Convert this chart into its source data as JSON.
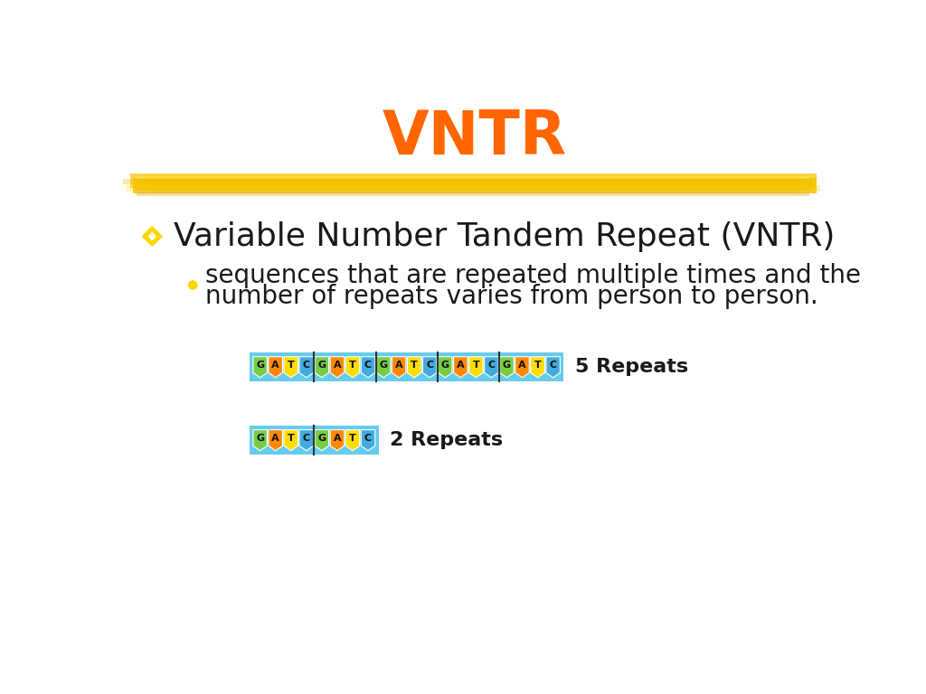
{
  "title": "VNTR",
  "title_color": "#FF6600",
  "title_fontsize": 48,
  "bullet1_text": "Variable Number Tandem Repeat (VNTR)",
  "bullet1_fontsize": 26,
  "bullet2_line1": "sequences that are repeated multiple times and the",
  "bullet2_line2": "number of repeats varies from person to person.",
  "bullet2_fontsize": 20,
  "diamond_color": "#FFD700",
  "bullet_color": "#FFD700",
  "text_color": "#1a1a1a",
  "bg_color": "#ffffff",
  "banner_color_main": "#F5C200",
  "banner_color_light": "#FFE040",
  "sequence": [
    "G",
    "A",
    "T",
    "C"
  ],
  "letter_colors": {
    "G": "#77CC44",
    "A": "#FF8800",
    "T": "#FFDD00",
    "C": "#44AADD"
  },
  "seq5_label": "5 Repeats",
  "seq2_label": "2 Repeats",
  "repeats5": 5,
  "repeats2": 2,
  "seq_bg_color": "#66CCEE",
  "divider_color": "#333333"
}
